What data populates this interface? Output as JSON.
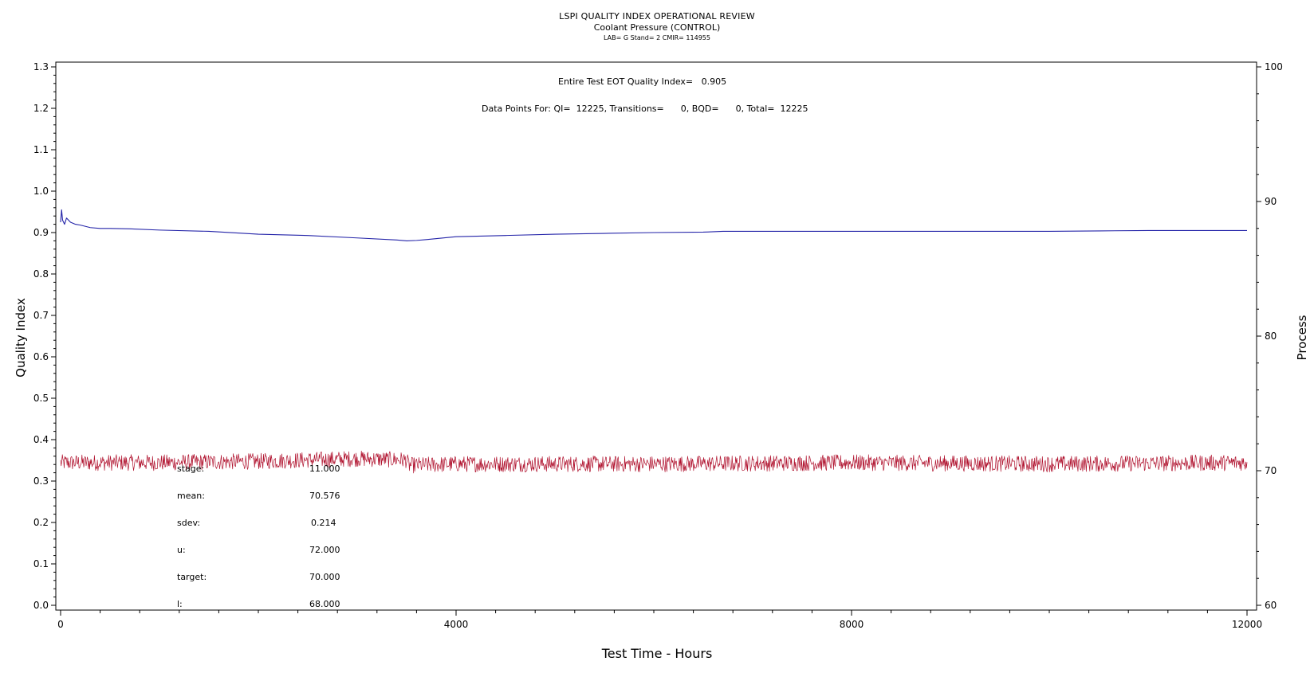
{
  "chart_data": {
    "type": "line",
    "title": "LSPI QUALITY INDEX OPERATIONAL REVIEW",
    "subtitle": "Coolant Pressure (CONTROL)",
    "info": "LAB= G Stand= 2 CMIR= 114955",
    "annotations": [
      "Entire Test EOT Quality Index=   0.905",
      "Data Points For: QI=  12225, Transitions=      0, BQD=      0, Total=  12225"
    ],
    "xlabel": "Test Time  -  Hours",
    "ylabel_left": "Quality Index",
    "ylabel_right": "Process",
    "xlim": [
      0,
      12000
    ],
    "ylim_left": [
      0.0,
      1.3
    ],
    "ylim_right": [
      60,
      100
    ],
    "x_ticks": [
      "0",
      "4000",
      "8000",
      "12000"
    ],
    "y_left_ticks": [
      "0.0",
      "0.1",
      "0.2",
      "0.3",
      "0.4",
      "0.5",
      "0.6",
      "0.7",
      "0.8",
      "0.9",
      "1.0",
      "1.1",
      "1.2",
      "1.3"
    ],
    "y_right_ticks": [
      "60",
      "70",
      "80",
      "90",
      "100"
    ],
    "series": [
      {
        "axis": "left",
        "color": "#2323a8",
        "x": [
          0,
          10,
          20,
          40,
          60,
          100,
          150,
          200,
          300,
          400,
          500,
          700,
          1000,
          1500,
          2000,
          2500,
          3000,
          3400,
          3500,
          3600,
          3700,
          4000,
          4500,
          5000,
          5500,
          6000,
          6500,
          6700,
          7000,
          8000,
          9000,
          10000,
          10500,
          11000,
          12000
        ],
        "y": [
          0.925,
          0.955,
          0.93,
          0.92,
          0.935,
          0.925,
          0.92,
          0.918,
          0.912,
          0.91,
          0.91,
          0.909,
          0.906,
          0.903,
          0.896,
          0.893,
          0.887,
          0.882,
          0.88,
          0.881,
          0.883,
          0.89,
          0.893,
          0.896,
          0.898,
          0.9,
          0.901,
          0.903,
          0.903,
          0.903,
          0.903,
          0.903,
          0.904,
          0.905,
          0.905
        ]
      },
      {
        "axis": "right",
        "color": "#b0122e",
        "noise_amplitude": 0.6,
        "x": [
          0,
          1000,
          2000,
          2500,
          3000,
          3500,
          3520,
          4000,
          6000,
          8000,
          10000,
          12000
        ],
        "y": [
          70.6,
          70.6,
          70.7,
          70.8,
          70.9,
          70.8,
          70.4,
          70.5,
          70.5,
          70.6,
          70.5,
          70.6
        ]
      }
    ]
  },
  "stats": [
    {
      "label": "stage:",
      "value": "11.000"
    },
    {
      "label": "mean:",
      "value": "70.576"
    },
    {
      "label": "sdev:",
      "value": "0.214"
    },
    {
      "label": "u:",
      "value": "72.000"
    },
    {
      "label": "target:",
      "value": "70.000"
    },
    {
      "label": "l:",
      "value": "68.000"
    }
  ]
}
